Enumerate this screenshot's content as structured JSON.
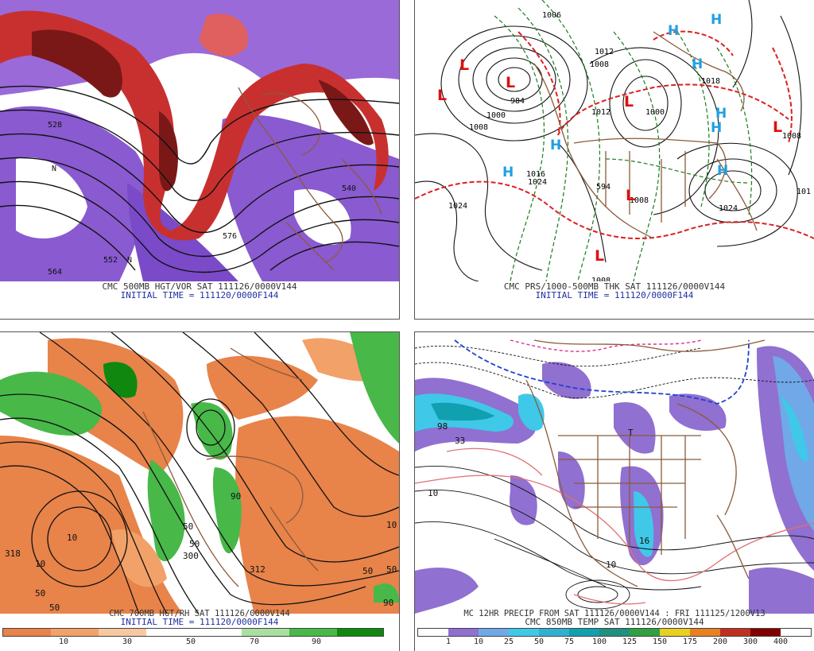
{
  "panels": [
    {
      "id": "p1",
      "caption1": "CMC 500MB HGT/VOR SAT 111126/0000V144",
      "caption2": "INITIAL TIME = 111120/0000F144",
      "labels": [
        "576",
        "528",
        "540",
        "552",
        "564",
        "N",
        "N"
      ]
    },
    {
      "id": "p2",
      "caption1": "CMC PRS/1000-500MB THK SAT 111126/0000V144",
      "caption2": "INITIAL TIME = 111120/0000F144",
      "labels": [
        "1006",
        "1008",
        "1000",
        "1008",
        "1012",
        "1000",
        "1024",
        "1024",
        "1024",
        "1008",
        "1018",
        "101",
        "1008",
        "1016",
        "984",
        "594",
        "1008",
        "1012"
      ],
      "lows": [
        "L",
        "L",
        "L",
        "L",
        "L",
        "L",
        "L"
      ],
      "highs": [
        "H",
        "H",
        "H",
        "H",
        "H",
        "H",
        "H",
        "H"
      ]
    },
    {
      "id": "p3",
      "caption1": "CMC 700MB HGT/RH SAT 111126/0000V144",
      "caption2": "INITIAL TIME = 111120/0000F144",
      "labels": [
        "10",
        "10",
        "318",
        "50",
        "50",
        "50",
        "90",
        "312",
        "50",
        "10",
        "50",
        "90",
        "300",
        "50"
      ],
      "colorbar": {
        "ticks": [
          "10",
          "30",
          "50",
          "70",
          "90"
        ],
        "colors": [
          "#e8834a",
          "#f2a168",
          "#f8c8a0",
          "#ffffff",
          "#ffffff",
          "#a8e0a0",
          "#48b848",
          "#108810"
        ]
      }
    },
    {
      "id": "p4",
      "caption1": "MC 12HR PRECIP FROM SAT 111126/0000V144 : FRI 111125/1200V13",
      "caption2": "CMC 850MB TEMP SAT 111126/0000V144",
      "labels": [
        "98",
        "33",
        "10",
        "16",
        "T",
        "10"
      ],
      "colorbar": {
        "ticks": [
          "1",
          "10",
          "25",
          "50",
          "75",
          "100",
          "125",
          "150",
          "175",
          "200",
          "300",
          "400"
        ],
        "colors": [
          "#ffffff",
          "#9070d0",
          "#70a8e8",
          "#40c8e8",
          "#30b0d0",
          "#10a0b0",
          "#209080",
          "#30a040",
          "#e8d020",
          "#e88020",
          "#c03020",
          "#800000"
        ]
      }
    }
  ]
}
